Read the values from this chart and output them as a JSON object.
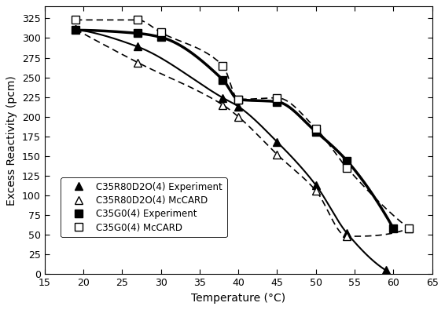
{
  "title": "",
  "xlabel": "Temperature (°C)",
  "ylabel": "Excess Reactivity (pcm)",
  "xlim": [
    15,
    65
  ],
  "ylim": [
    0,
    340
  ],
  "xticks": [
    15,
    20,
    25,
    30,
    35,
    40,
    45,
    50,
    55,
    60,
    65
  ],
  "yticks": [
    0,
    25,
    50,
    75,
    100,
    125,
    150,
    175,
    200,
    225,
    250,
    275,
    300,
    325
  ],
  "C35R80D2O_exp_x": [
    19,
    27,
    38,
    40,
    45,
    50,
    54,
    59
  ],
  "C35R80D2O_exp_y": [
    311,
    289,
    224,
    213,
    168,
    113,
    52,
    5
  ],
  "C35R80D2O_mc_x": [
    19,
    27,
    38,
    40,
    45,
    50,
    54,
    62
  ],
  "C35R80D2O_mc_y": [
    311,
    269,
    215,
    200,
    152,
    106,
    48,
    58
  ],
  "C35G0_exp_x": [
    19,
    27,
    30,
    38,
    40,
    45,
    50,
    54,
    60
  ],
  "C35G0_exp_y": [
    310,
    306,
    301,
    247,
    222,
    219,
    181,
    144,
    58
  ],
  "C35G0_mc_x": [
    19,
    27,
    30,
    38,
    40,
    45,
    50,
    54,
    62
  ],
  "C35G0_mc_y": [
    323,
    323,
    307,
    265,
    222,
    224,
    185,
    135,
    58
  ],
  "legend_labels": [
    "C35R80D2O(4) Experiment",
    "C35R80D2O(4) McCARD",
    "C35G0(4) Experiment",
    "C35G0(4) McCARD"
  ],
  "color": "#000000",
  "figsize": [
    5.66,
    3.95
  ],
  "dpi": 100
}
